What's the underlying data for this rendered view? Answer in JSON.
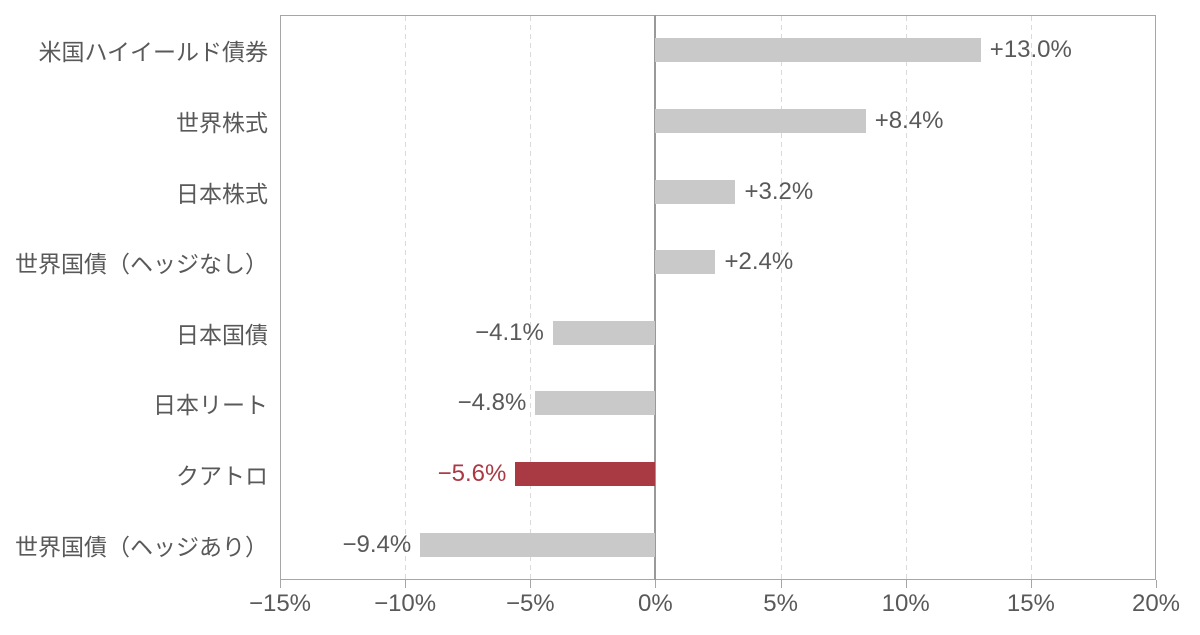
{
  "chart_data": {
    "type": "bar",
    "orientation": "horizontal",
    "title": "",
    "categories": [
      "米国ハイイールド債券",
      "世界株式",
      "日本株式",
      "世界国債（ヘッジなし）",
      "日本国債",
      "日本リート",
      "クアトロ",
      "世界国債（ヘッジあり）"
    ],
    "values": [
      13.0,
      8.4,
      3.2,
      2.4,
      -4.1,
      -4.8,
      -5.6,
      -9.4
    ],
    "value_labels": [
      "+13.0%",
      "+8.4%",
      "+3.2%",
      "+2.4%",
      "−4.1%",
      "−4.8%",
      "−5.6%",
      "−9.4%"
    ],
    "highlight_index": 6,
    "xlim": [
      -15,
      20
    ],
    "x_tick_values": [
      -15,
      -10,
      -5,
      0,
      5,
      10,
      15,
      20
    ],
    "x_tick_labels": [
      "−15%",
      "−10%",
      "−5%",
      "0%",
      "5%",
      "10%",
      "15%",
      "20%"
    ],
    "legend": "none",
    "grid": "vertical dashed lines every 5%",
    "colors": {
      "bar": "#c9c9c9",
      "highlight_bar": "#a93a44",
      "highlight_text": "#a93a44",
      "text": "#595959",
      "border": "#a6a6a6",
      "gridline": "#dadada",
      "zero_line": "#999999",
      "background": "#ffffff"
    }
  }
}
